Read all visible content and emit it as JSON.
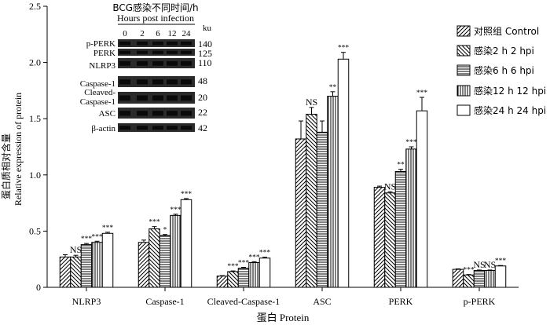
{
  "chart_data": {
    "type": "bar",
    "title": "",
    "xlabel": "蛋白 Protein",
    "ylabel_cn": "蛋白质相对含量",
    "ylabel_en": "Relative expression of protein",
    "ylim": [
      0,
      2.5
    ],
    "yticks": [
      "0",
      "0.5",
      "1.0",
      "1.5",
      "2.0",
      "2.5"
    ],
    "categories": [
      "NLRP3",
      "Caspase-1",
      "Cleaved-Caspase-1",
      "ASC",
      "PERK",
      "p-PERK"
    ],
    "series": [
      {
        "name": "对照组 Control",
        "pattern": "diag",
        "values": [
          0.27,
          0.4,
          0.1,
          1.32,
          0.89,
          0.16
        ],
        "errors": [
          0.02,
          0.02,
          0.004,
          0.16,
          0.01,
          0.004
        ],
        "sig": [
          "",
          "",
          "",
          "",
          "",
          ""
        ]
      },
      {
        "name": "感染2 h 2 hpi",
        "pattern": "diag2",
        "values": [
          0.27,
          0.52,
          0.14,
          1.54,
          0.84,
          0.11
        ],
        "errors": [
          0.015,
          0.02,
          0.006,
          0.06,
          0.01,
          0.004
        ],
        "sig": [
          "NS",
          "***",
          "***",
          "NS",
          "NS",
          "***"
        ]
      },
      {
        "name": "感染6 h 6 hpi",
        "pattern": "horiz",
        "values": [
          0.38,
          0.46,
          0.17,
          1.38,
          1.03,
          0.15
        ],
        "errors": [
          0.01,
          0.01,
          0.008,
          0.1,
          0.02,
          0.004
        ],
        "sig": [
          "***",
          "*",
          "***",
          "",
          "**",
          "NS"
        ]
      },
      {
        "name": "感染12 h 12 hpi",
        "pattern": "vert",
        "values": [
          0.4,
          0.64,
          0.22,
          1.7,
          1.23,
          0.15
        ],
        "errors": [
          0.01,
          0.01,
          0.008,
          0.04,
          0.02,
          0.004
        ],
        "sig": [
          "***",
          "***",
          "***",
          "**",
          "***",
          "NS"
        ]
      },
      {
        "name": "感染24 h 24 hpi",
        "pattern": "white",
        "values": [
          0.48,
          0.78,
          0.26,
          2.03,
          1.57,
          0.19
        ],
        "errors": [
          0.01,
          0.01,
          0.008,
          0.06,
          0.12,
          0.004
        ],
        "sig": [
          "***",
          "***",
          "***",
          "***",
          "***",
          "***"
        ]
      }
    ],
    "legend_position": "right",
    "inset_blot": {
      "title": "BCG感染不同时间/h",
      "subtitle": "Hours post infection",
      "time_points": [
        "0",
        "2",
        "6",
        "12",
        "24"
      ],
      "unit": "ku",
      "rows": [
        {
          "label": "p-PERK",
          "size": "140"
        },
        {
          "label": "PERK",
          "size": "125"
        },
        {
          "label": "NLRP3",
          "size": "110"
        },
        {
          "label": "Caspase-1",
          "size": "48"
        },
        {
          "label": "Cleaved-Caspase-1",
          "size": "20"
        },
        {
          "label": "ASC",
          "size": "22"
        },
        {
          "label": "β-actin",
          "size": "42"
        }
      ]
    }
  }
}
